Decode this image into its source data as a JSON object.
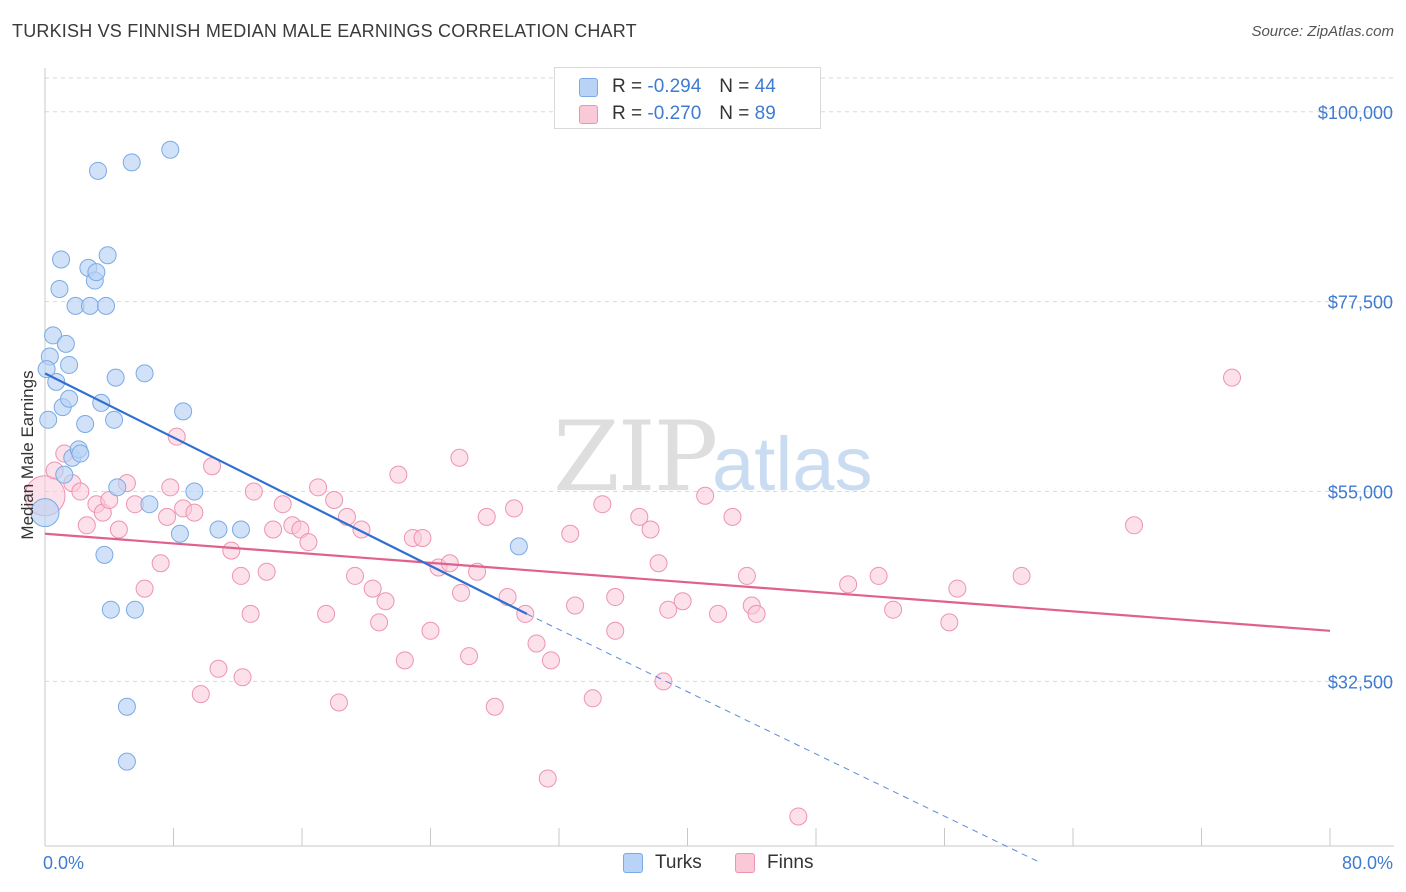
{
  "header": {
    "title": "TURKISH VS FINNISH MEDIAN MALE EARNINGS CORRELATION CHART",
    "source": "Source: ZipAtlas.com"
  },
  "legend": {
    "turks": {
      "r_label": "R = ",
      "r_value": "-0.294",
      "n_label": "N = ",
      "n_value": "44"
    },
    "finns": {
      "r_label": "R = ",
      "r_value": "-0.270",
      "n_label": "N = ",
      "n_value": "89"
    }
  },
  "bottom_legend": {
    "turks": "Turks",
    "finns": "Finns"
  },
  "watermark": {
    "zip": "ZIP",
    "atlas": "atlas"
  },
  "colors": {
    "turks_fill": "#b8d3f5",
    "turks_stroke": "#7aaae6",
    "turks_line": "#2f6fd0",
    "finns_fill": "#f9c9d8",
    "finns_stroke": "#ee93b1",
    "finns_line": "#e0608e",
    "tick_text": "#3f7bd1"
  },
  "chart_data": {
    "type": "scatter",
    "title": "TURKISH VS FINNISH MEDIAN MALE EARNINGS CORRELATION CHART",
    "xlabel": "",
    "ylabel": "Median Male Earnings",
    "xlim": [
      0,
      80
    ],
    "ylim": [
      13000,
      104000
    ],
    "x_tick_labels": [
      "0.0%",
      "80.0%"
    ],
    "y_ticks": [
      32500,
      55000,
      77500,
      100000
    ],
    "y_tick_labels": [
      "$32,500",
      "$55,000",
      "$77,500",
      "$100,000"
    ],
    "grid": true,
    "series": [
      {
        "name": "Turks",
        "points": [
          [
            0.0,
            52500
          ],
          [
            0.2,
            63500
          ],
          [
            0.3,
            71000
          ],
          [
            0.5,
            73500
          ],
          [
            0.7,
            68000
          ],
          [
            0.9,
            79000
          ],
          [
            1.0,
            82500
          ],
          [
            1.1,
            65000
          ],
          [
            1.3,
            72500
          ],
          [
            1.5,
            70000
          ],
          [
            1.5,
            66000
          ],
          [
            1.7,
            59000
          ],
          [
            1.9,
            77000
          ],
          [
            2.1,
            60000
          ],
          [
            2.2,
            59500
          ],
          [
            2.5,
            63000
          ],
          [
            2.7,
            81500
          ],
          [
            2.8,
            77000
          ],
          [
            3.1,
            80000
          ],
          [
            3.2,
            81000
          ],
          [
            3.3,
            93000
          ],
          [
            3.5,
            65500
          ],
          [
            3.7,
            47500
          ],
          [
            3.8,
            77000
          ],
          [
            3.9,
            83000
          ],
          [
            4.1,
            41000
          ],
          [
            4.3,
            63500
          ],
          [
            4.4,
            68500
          ],
          [
            4.5,
            55500
          ],
          [
            5.1,
            29500
          ],
          [
            5.1,
            23000
          ],
          [
            5.4,
            94000
          ],
          [
            5.6,
            41000
          ],
          [
            6.2,
            69000
          ],
          [
            6.5,
            53500
          ],
          [
            7.8,
            95500
          ],
          [
            8.4,
            50000
          ],
          [
            8.6,
            64500
          ],
          [
            9.3,
            55000
          ],
          [
            10.8,
            50500
          ],
          [
            12.2,
            50500
          ],
          [
            29.5,
            48500
          ],
          [
            0.1,
            69500
          ],
          [
            1.2,
            57000
          ]
        ],
        "trend": {
          "x": [
            0,
            30
          ],
          "y": [
            69000,
            40500
          ],
          "dashed_to": [
            62,
            11000
          ]
        }
      },
      {
        "name": "Finns",
        "points": [
          [
            0.0,
            54500
          ],
          [
            0.6,
            57500
          ],
          [
            1.2,
            59500
          ],
          [
            1.7,
            56000
          ],
          [
            2.2,
            55000
          ],
          [
            2.6,
            51000
          ],
          [
            3.2,
            53500
          ],
          [
            3.6,
            52500
          ],
          [
            4.0,
            54000
          ],
          [
            4.6,
            50500
          ],
          [
            5.1,
            56000
          ],
          [
            5.6,
            53500
          ],
          [
            6.2,
            43500
          ],
          [
            7.2,
            46500
          ],
          [
            7.6,
            52000
          ],
          [
            7.8,
            55500
          ],
          [
            8.2,
            61500
          ],
          [
            8.6,
            53000
          ],
          [
            9.3,
            52500
          ],
          [
            9.7,
            31000
          ],
          [
            10.4,
            58000
          ],
          [
            10.8,
            34000
          ],
          [
            11.6,
            48000
          ],
          [
            12.2,
            45000
          ],
          [
            12.3,
            33000
          ],
          [
            12.8,
            40500
          ],
          [
            13.0,
            55000
          ],
          [
            13.8,
            45500
          ],
          [
            14.2,
            50500
          ],
          [
            14.8,
            53500
          ],
          [
            15.4,
            51000
          ],
          [
            15.9,
            50500
          ],
          [
            16.4,
            49000
          ],
          [
            17.0,
            55500
          ],
          [
            17.5,
            40500
          ],
          [
            18.0,
            54000
          ],
          [
            18.3,
            30000
          ],
          [
            18.8,
            52000
          ],
          [
            19.3,
            45000
          ],
          [
            19.7,
            50500
          ],
          [
            20.4,
            43500
          ],
          [
            20.8,
            39500
          ],
          [
            21.2,
            42000
          ],
          [
            22.0,
            57000
          ],
          [
            22.4,
            35000
          ],
          [
            22.9,
            49500
          ],
          [
            23.5,
            49500
          ],
          [
            24.0,
            38500
          ],
          [
            24.5,
            46000
          ],
          [
            25.2,
            46500
          ],
          [
            25.8,
            59000
          ],
          [
            25.9,
            43000
          ],
          [
            26.4,
            35500
          ],
          [
            26.9,
            45500
          ],
          [
            27.5,
            52000
          ],
          [
            28.0,
            29500
          ],
          [
            28.8,
            42500
          ],
          [
            29.2,
            53000
          ],
          [
            29.9,
            40500
          ],
          [
            30.6,
            37000
          ],
          [
            31.3,
            21000
          ],
          [
            31.5,
            35000
          ],
          [
            32.7,
            50000
          ],
          [
            33.0,
            41500
          ],
          [
            34.1,
            30500
          ],
          [
            34.7,
            53500
          ],
          [
            35.5,
            42500
          ],
          [
            35.5,
            38500
          ],
          [
            37.0,
            52000
          ],
          [
            37.7,
            50500
          ],
          [
            38.2,
            46500
          ],
          [
            38.5,
            32500
          ],
          [
            38.8,
            41000
          ],
          [
            39.7,
            42000
          ],
          [
            41.1,
            54500
          ],
          [
            41.9,
            40500
          ],
          [
            42.8,
            52000
          ],
          [
            43.7,
            45000
          ],
          [
            44.0,
            41500
          ],
          [
            44.3,
            40500
          ],
          [
            50.0,
            44000
          ],
          [
            51.9,
            45000
          ],
          [
            52.8,
            41000
          ],
          [
            56.3,
            39500
          ],
          [
            56.8,
            43500
          ],
          [
            60.8,
            45000
          ],
          [
            67.8,
            51000
          ],
          [
            73.9,
            68500
          ],
          [
            46.9,
            16500
          ]
        ],
        "trend": {
          "x": [
            0,
            80
          ],
          "y": [
            50000,
            38500
          ]
        }
      }
    ]
  }
}
